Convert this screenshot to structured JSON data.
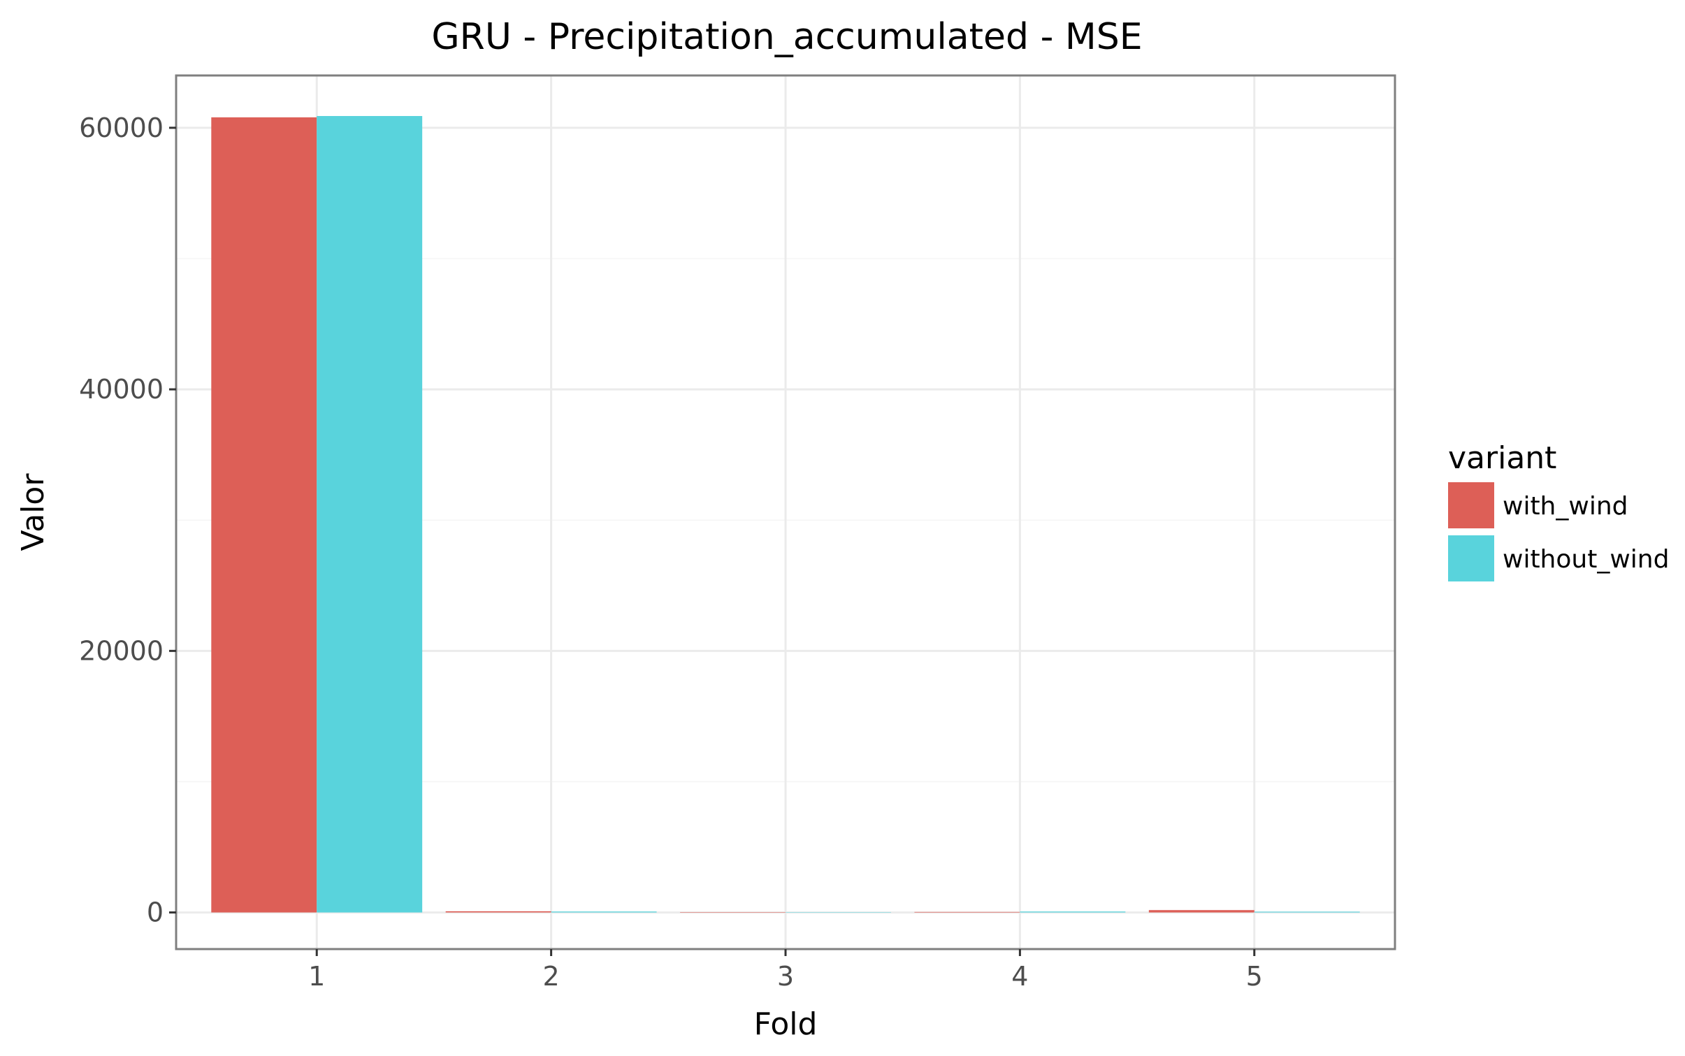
{
  "chart_data": {
    "type": "bar",
    "title": "GRU - Precipitation_accumulated - MSE",
    "xlabel": "Fold",
    "ylabel": "Valor",
    "categories": [
      "1",
      "2",
      "3",
      "4",
      "5"
    ],
    "series": [
      {
        "name": "with_wind",
        "color": "#dd5f57",
        "values": [
          60800,
          90,
          30,
          40,
          180
        ]
      },
      {
        "name": "without_wind",
        "color": "#59d3dc",
        "values": [
          60900,
          70,
          25,
          70,
          60
        ]
      }
    ],
    "yticks": [
      "0",
      "20000",
      "40000",
      "60000"
    ],
    "ylim": [
      -2800,
      64000
    ],
    "legend": {
      "title": "variant",
      "position": "right"
    },
    "grid": true
  }
}
